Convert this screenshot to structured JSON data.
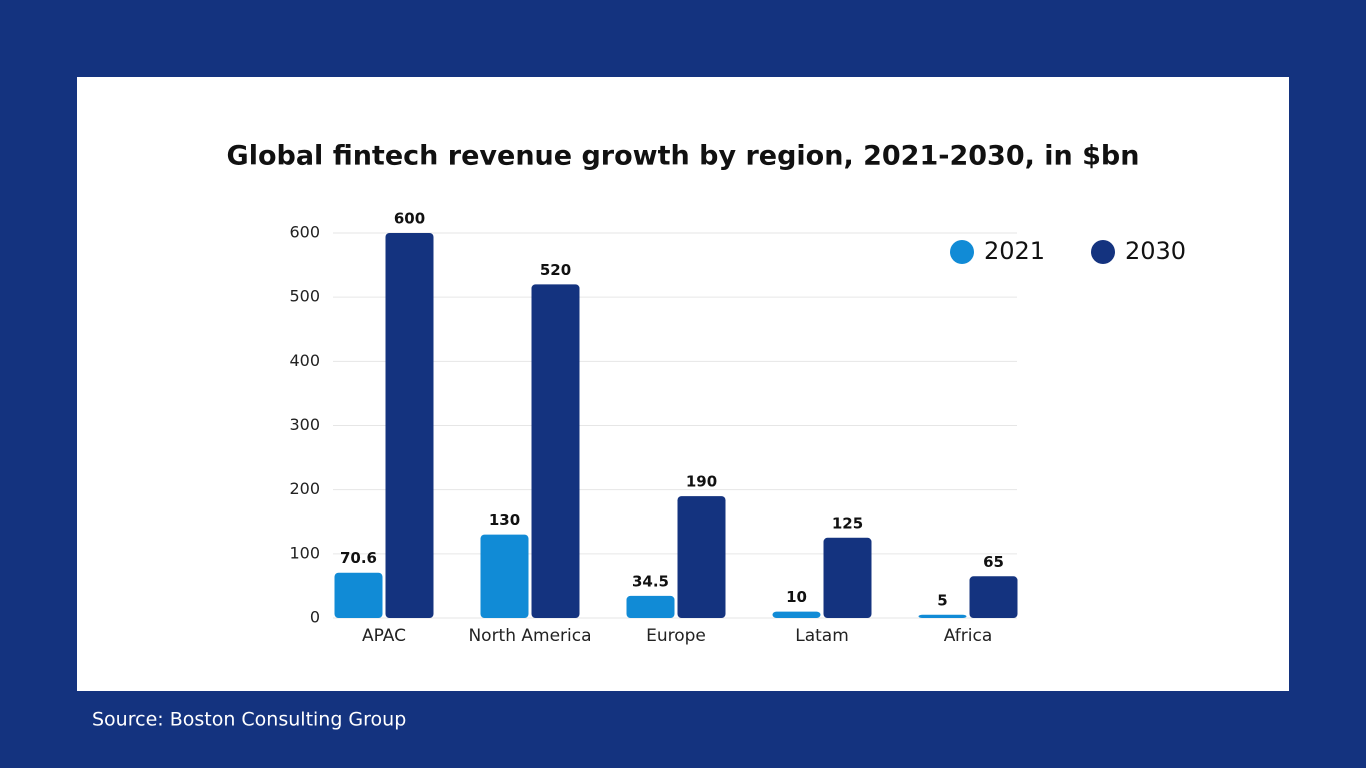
{
  "chart_data": {
    "type": "bar",
    "title": "Global fintech revenue growth by region, 2021-2030, in $bn",
    "categories": [
      "APAC",
      "North America",
      "Europe",
      "Latam",
      "Africa"
    ],
    "series": [
      {
        "name": "2021",
        "color": "#118bd6",
        "values": [
          70.6,
          130,
          34.5,
          10,
          5
        ]
      },
      {
        "name": "2030",
        "color": "#14337f",
        "values": [
          600,
          520,
          190,
          125,
          65
        ]
      }
    ],
    "ylim": [
      0,
      600
    ],
    "yticks": [
      0,
      100,
      200,
      300,
      400,
      500,
      600
    ],
    "grid": true,
    "legend": "upper right",
    "source": "Source: Boston Consulting Group"
  }
}
